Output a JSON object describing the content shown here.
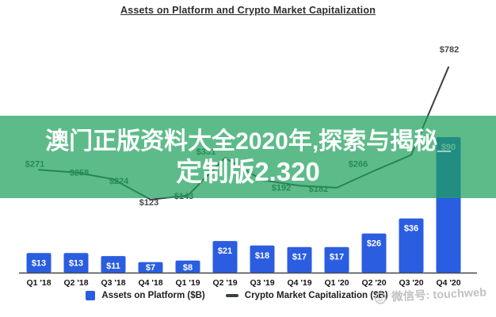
{
  "title": "Assets on Platform and Crypto Market Capitalization",
  "overlay": {
    "line1": "澳门正版资料大全2020年,探索与揭秘_",
    "line2": "定制版2.320"
  },
  "legend": {
    "assets_label": "Assets on Platform ($B)",
    "market_label": "Crypto Market Capitalization ($B)"
  },
  "watermark": {
    "text": "微信号: touchweb"
  },
  "colors": {
    "bar_blue": "#2b5de0",
    "line_dark": "#3a3f44",
    "overlay_green": "rgba(31,161,93,0.72)",
    "watermark_gray": "#c2c2c2"
  },
  "chart_data": {
    "type": "bar",
    "subtype": "bar-line combo",
    "title": "Assets on Platform and Crypto Market Capitalization",
    "categories": [
      "Q1 '18",
      "Q2 '18",
      "Q3 '18",
      "Q4 '18",
      "Q1 '19",
      "Q2 '19",
      "Q3 '19",
      "Q4 '19",
      "Q1 '20",
      "Q2 '20",
      "Q3 '20",
      "Q4 '20"
    ],
    "series": [
      {
        "name": "Assets on Platform ($B)",
        "type": "bar",
        "values": [
          13,
          13,
          11,
          7,
          8,
          21,
          18,
          17,
          17,
          26,
          36,
          90
        ],
        "point_labels": [
          "$13",
          "$13",
          "$11",
          "$7",
          "$8",
          "$21",
          "$18",
          "$17",
          "$17",
          "$26",
          "$36",
          "$90"
        ]
      },
      {
        "name": "Crypto Market Capitalization ($B)",
        "type": "line",
        "values": [
          271,
          258,
          224,
          123,
          143,
          331,
          220,
          192,
          182,
          266,
          345,
          782
        ],
        "point_labels": [
          "$271",
          "$258",
          "$224",
          "$123",
          "$143",
          "$331",
          null,
          "$192",
          "$182",
          "$266",
          null,
          "$782"
        ],
        "note": "labels for Q3 '19 and Q3 '20 are hidden behind the green overlay banner; their values are estimated from the line position"
      }
    ],
    "xlabel": "",
    "ylabel": "",
    "grid": false,
    "legend_position": "bottom"
  }
}
